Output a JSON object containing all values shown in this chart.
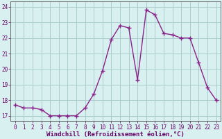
{
  "x": [
    0,
    1,
    2,
    3,
    4,
    5,
    6,
    7,
    8,
    9,
    10,
    11,
    12,
    13,
    14,
    15,
    16,
    17,
    18,
    19,
    20,
    21,
    22,
    23
  ],
  "y": [
    17.7,
    17.5,
    17.5,
    17.4,
    17.0,
    17.0,
    17.0,
    17.0,
    17.5,
    18.4,
    19.9,
    21.9,
    22.8,
    22.65,
    19.3,
    23.8,
    23.5,
    22.3,
    22.2,
    22.0,
    22.0,
    20.4,
    18.8,
    18.0
  ],
  "line_color": "#882288",
  "marker": "+",
  "markersize": 4,
  "linewidth": 1.0,
  "bg_color": "#d8f0f0",
  "grid_color": "#aacccc",
  "xlabel": "Windchill (Refroidissement éolien,°C)",
  "xlabel_fontsize": 6.5,
  "ylabel_ticks": [
    17,
    18,
    19,
    20,
    21,
    22,
    23,
    24
  ],
  "xlim": [
    -0.5,
    23.5
  ],
  "ylim": [
    16.65,
    24.35
  ],
  "xticks": [
    0,
    1,
    2,
    3,
    4,
    5,
    6,
    7,
    8,
    9,
    10,
    11,
    12,
    13,
    14,
    15,
    16,
    17,
    18,
    19,
    20,
    21,
    22,
    23
  ],
  "tick_fontsize": 5.5
}
